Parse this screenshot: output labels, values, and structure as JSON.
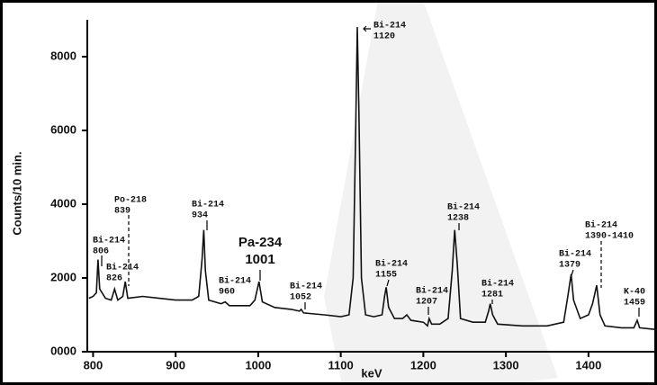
{
  "chart_data": {
    "type": "line",
    "y_label": "Counts/10 min.",
    "x_label": "keV",
    "xlim": [
      793,
      1483
    ],
    "ylim": [
      0,
      9000
    ],
    "xticks": [
      800,
      900,
      1000,
      1100,
      1200,
      1300,
      1400
    ],
    "yticks": [
      {
        "value": 0,
        "label": "0000"
      },
      2000,
      4000,
      6000,
      8000
    ],
    "series": [
      {
        "color": "#111111",
        "x": [
          795,
          800,
          804,
          806,
          808,
          815,
          822,
          826,
          830,
          836,
          839,
          842,
          860,
          880,
          900,
          920,
          928,
          932,
          934,
          936,
          940,
          955,
          960,
          965,
          990,
          996,
          1001,
          1005,
          1020,
          1040,
          1050,
          1052,
          1055,
          1080,
          1100,
          1110,
          1115,
          1118,
          1120,
          1122,
          1125,
          1130,
          1140,
          1150,
          1153,
          1155,
          1158,
          1165,
          1175,
          1180,
          1185,
          1200,
          1205,
          1207,
          1210,
          1220,
          1230,
          1235,
          1238,
          1241,
          1245,
          1260,
          1275,
          1279,
          1281,
          1284,
          1290,
          1320,
          1350,
          1370,
          1375,
          1379,
          1382,
          1390,
          1400,
          1405,
          1410,
          1414,
          1420,
          1440,
          1455,
          1459,
          1462,
          1483
        ],
        "values": [
          1450,
          1500,
          1600,
          2500,
          1700,
          1450,
          1400,
          1700,
          1400,
          1500,
          1900,
          1450,
          1500,
          1450,
          1400,
          1400,
          1500,
          2500,
          3300,
          2200,
          1400,
          1300,
          1350,
          1250,
          1250,
          1400,
          1900,
          1350,
          1200,
          1150,
          1100,
          1150,
          1050,
          1000,
          950,
          1000,
          2000,
          6000,
          8800,
          6500,
          2000,
          1000,
          950,
          1000,
          1500,
          1750,
          1200,
          900,
          900,
          1000,
          850,
          800,
          700,
          900,
          750,
          750,
          900,
          2200,
          3300,
          2400,
          900,
          800,
          800,
          1100,
          1300,
          1000,
          750,
          700,
          700,
          800,
          1500,
          2100,
          1400,
          900,
          1000,
          1300,
          1800,
          1000,
          700,
          650,
          650,
          850,
          650,
          600
        ]
      }
    ],
    "annotations": [
      {
        "lines": [
          "Bi-214",
          "806"
        ]
      },
      {
        "lines": [
          "Po-218",
          "839"
        ]
      },
      {
        "lines": [
          "Bi-214",
          "826"
        ]
      },
      {
        "lines": [
          "Bi-214",
          "934"
        ]
      },
      {
        "lines": [
          "Pa-234",
          "1001"
        ]
      },
      {
        "lines": [
          "Bi-214",
          "960"
        ]
      },
      {
        "lines": [
          "Bi-214",
          "1052"
        ]
      },
      {
        "lines": [
          "Bi-214",
          "1120"
        ]
      },
      {
        "lines": [
          "Bi-214",
          "1155"
        ]
      },
      {
        "lines": [
          "Bi-214",
          "1207"
        ]
      },
      {
        "lines": [
          "Bi-214",
          "1238"
        ]
      },
      {
        "lines": [
          "Bi-214",
          "1281"
        ]
      },
      {
        "lines": [
          "Bi-214",
          "1379"
        ]
      },
      {
        "lines": [
          "Bi-214",
          "1390-1410"
        ]
      },
      {
        "lines": [
          "K-40",
          "1459"
        ]
      }
    ]
  }
}
